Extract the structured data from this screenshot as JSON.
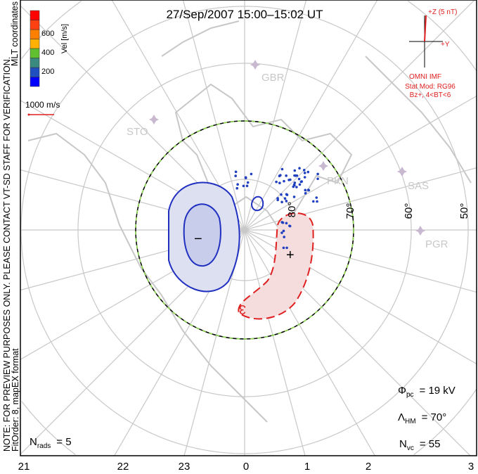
{
  "title": "27/Sep/2007  15:00–15:02 UT",
  "note": "NOTE: FOR PREVIEW PURPOSES ONLY. PLEASE CONTACT VT-SD STAFF FOR VERIFICATION.",
  "fitorder": "FitOrder: 8, mapEX format",
  "coords": "MLT coordinates",
  "colorbar": {
    "label": "Vel [m/s]",
    "ticks": [
      "200",
      "400",
      "600"
    ],
    "colors": [
      "#0000ff",
      "#2050c0",
      "#3a8a80",
      "#60c030",
      "#ffb000",
      "#ff8000",
      "#ff4010",
      "#ff0000"
    ]
  },
  "scale_label": "1000 m/s",
  "imf": {
    "z": "+Z (5 nT)",
    "y": "+Y",
    "src": "OMNI IMF",
    "mod": "Stat Mod: RG96",
    "cond": "Bz+, 4<BT<6"
  },
  "stats": {
    "phi_sym": "Φ",
    "phi_sub": "pc",
    "phi_val": "= 19 kV",
    "lam_sym": "Λ",
    "lam_sub": "HM",
    "lam_val": "= 70°",
    "n_sym": "N",
    "n_sub": "vc",
    "n_val": "= 55"
  },
  "nrads": {
    "sym": "N",
    "sub": "rads",
    "val": "= 5"
  },
  "radars": [
    "GBR",
    "STO",
    "PKN",
    "SAS",
    "PGR"
  ],
  "lat_labels": [
    "80°",
    "70°",
    "60°",
    "50°"
  ],
  "mlt_labels": [
    "21",
    "22",
    "23",
    "0",
    "1",
    "2",
    "3"
  ],
  "cells": {
    "min": "−",
    "max": "+",
    "max_label": "3"
  }
}
